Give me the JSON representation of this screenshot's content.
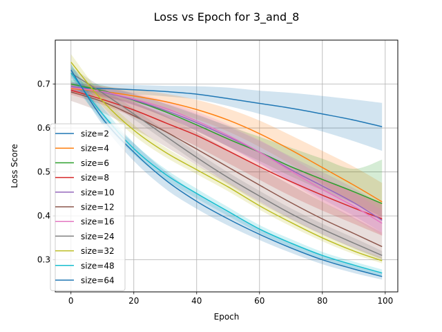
{
  "chart_data": {
    "type": "line",
    "title": "Loss vs Epoch for 3_and_8",
    "xlabel": "Epoch",
    "ylabel": "Loss Score",
    "xlim": [
      -5,
      104
    ],
    "ylim": [
      0.227,
      0.8
    ],
    "xticks": [
      0,
      20,
      40,
      60,
      80,
      100
    ],
    "yticks": [
      0.3,
      0.4,
      0.5,
      0.6,
      0.7
    ],
    "xtick_labels": [
      "0",
      "20",
      "40",
      "60",
      "80",
      "100"
    ],
    "ytick_labels": [
      "0.3",
      "0.4",
      "0.5",
      "0.6",
      "0.7"
    ],
    "grid": true,
    "legend_position": "lower-left",
    "x": [
      0,
      10,
      20,
      30,
      40,
      50,
      60,
      70,
      80,
      90,
      99
    ],
    "series": [
      {
        "name": "size=2",
        "color": "#1f77b4",
        "values": [
          0.692,
          0.69,
          0.687,
          0.683,
          0.677,
          0.667,
          0.656,
          0.645,
          0.632,
          0.618,
          0.603
        ],
        "lower": [
          0.682,
          0.68,
          0.677,
          0.672,
          0.665,
          0.65,
          0.632,
          0.612,
          0.592,
          0.57,
          0.548
        ],
        "upper": [
          0.702,
          0.7,
          0.698,
          0.696,
          0.695,
          0.692,
          0.685,
          0.68,
          0.673,
          0.665,
          0.657
        ]
      },
      {
        "name": "size=4",
        "color": "#ff7f0e",
        "values": [
          0.69,
          0.683,
          0.673,
          0.66,
          0.642,
          0.618,
          0.587,
          0.55,
          0.51,
          0.47,
          0.432
        ],
        "lower": [
          0.68,
          0.67,
          0.658,
          0.642,
          0.62,
          0.592,
          0.557,
          0.517,
          0.472,
          0.43,
          0.392
        ],
        "upper": [
          0.7,
          0.695,
          0.688,
          0.678,
          0.664,
          0.644,
          0.617,
          0.583,
          0.548,
          0.512,
          0.475
        ]
      },
      {
        "name": "size=6",
        "color": "#2ca02c",
        "values": [
          0.7,
          0.685,
          0.663,
          0.637,
          0.607,
          0.575,
          0.545,
          0.512,
          0.483,
          0.455,
          0.428
        ],
        "lower": [
          0.69,
          0.675,
          0.653,
          0.625,
          0.593,
          0.558,
          0.525,
          0.49,
          0.458,
          0.428,
          0.398
        ],
        "upper": [
          0.71,
          0.697,
          0.678,
          0.655,
          0.63,
          0.605,
          0.58,
          0.555,
          0.53,
          0.507,
          0.528
        ]
      },
      {
        "name": "size=8",
        "color": "#d62728",
        "values": [
          0.686,
          0.665,
          0.641,
          0.612,
          0.583,
          0.548,
          0.512,
          0.478,
          0.447,
          0.418,
          0.393
        ],
        "lower": [
          0.676,
          0.653,
          0.625,
          0.592,
          0.558,
          0.52,
          0.482,
          0.445,
          0.412,
          0.382,
          0.355
        ],
        "upper": [
          0.696,
          0.677,
          0.657,
          0.632,
          0.608,
          0.578,
          0.545,
          0.512,
          0.482,
          0.455,
          0.43
        ]
      },
      {
        "name": "size=10",
        "color": "#9467bd",
        "values": [
          0.695,
          0.682,
          0.664,
          0.64,
          0.612,
          0.58,
          0.545,
          0.505,
          0.468,
          0.43,
          0.39
        ],
        "lower": [
          0.685,
          0.672,
          0.652,
          0.625,
          0.593,
          0.558,
          0.52,
          0.478,
          0.438,
          0.4,
          0.362
        ],
        "upper": [
          0.705,
          0.693,
          0.677,
          0.656,
          0.632,
          0.603,
          0.571,
          0.535,
          0.5,
          0.463,
          0.425
        ]
      },
      {
        "name": "size=12",
        "color": "#8c564b",
        "values": [
          0.682,
          0.66,
          0.628,
          0.592,
          0.552,
          0.511,
          0.47,
          0.43,
          0.393,
          0.36,
          0.33
        ],
        "lower": [
          0.662,
          0.635,
          0.598,
          0.558,
          0.515,
          0.472,
          0.43,
          0.392,
          0.357,
          0.327,
          0.302
        ],
        "upper": [
          0.705,
          0.688,
          0.66,
          0.628,
          0.59,
          0.55,
          0.51,
          0.47,
          0.432,
          0.396,
          0.362
        ]
      },
      {
        "name": "size=16",
        "color": "#e377c2",
        "values": [
          0.692,
          0.683,
          0.666,
          0.645,
          0.616,
          0.583,
          0.545,
          0.502,
          0.46,
          0.422,
          0.383
        ],
        "lower": [
          0.682,
          0.671,
          0.652,
          0.627,
          0.595,
          0.558,
          0.518,
          0.475,
          0.432,
          0.393,
          0.356
        ],
        "upper": [
          0.702,
          0.695,
          0.68,
          0.662,
          0.637,
          0.608,
          0.573,
          0.532,
          0.49,
          0.452,
          0.413
        ]
      },
      {
        "name": "size=24",
        "color": "#7f7f7f",
        "values": [
          0.725,
          0.68,
          0.632,
          0.582,
          0.533,
          0.487,
          0.445,
          0.405,
          0.37,
          0.338,
          0.31
        ],
        "lower": [
          0.712,
          0.668,
          0.62,
          0.57,
          0.521,
          0.475,
          0.433,
          0.393,
          0.358,
          0.326,
          0.3
        ],
        "upper": [
          0.738,
          0.692,
          0.644,
          0.594,
          0.545,
          0.499,
          0.457,
          0.417,
          0.382,
          0.35,
          0.32
        ]
      },
      {
        "name": "size=32",
        "color": "#bcbd22",
        "values": [
          0.75,
          0.662,
          0.595,
          0.545,
          0.505,
          0.466,
          0.423,
          0.385,
          0.35,
          0.32,
          0.298
        ],
        "lower": [
          0.732,
          0.65,
          0.583,
          0.534,
          0.495,
          0.456,
          0.414,
          0.376,
          0.342,
          0.313,
          0.292
        ],
        "upper": [
          0.768,
          0.674,
          0.607,
          0.556,
          0.515,
          0.476,
          0.432,
          0.394,
          0.358,
          0.328,
          0.305
        ]
      },
      {
        "name": "size=48",
        "color": "#17becf",
        "values": [
          0.725,
          0.632,
          0.553,
          0.495,
          0.451,
          0.41,
          0.37,
          0.338,
          0.31,
          0.288,
          0.27
        ],
        "lower": [
          0.705,
          0.615,
          0.54,
          0.483,
          0.44,
          0.4,
          0.361,
          0.329,
          0.302,
          0.28,
          0.262
        ],
        "upper": [
          0.745,
          0.648,
          0.566,
          0.507,
          0.462,
          0.42,
          0.379,
          0.347,
          0.318,
          0.296,
          0.278
        ]
      },
      {
        "name": "size=64",
        "color": "#1f77b4",
        "values": [
          0.732,
          0.622,
          0.545,
          0.482,
          0.433,
          0.393,
          0.358,
          0.327,
          0.3,
          0.279,
          0.262
        ],
        "lower": [
          0.718,
          0.608,
          0.525,
          0.462,
          0.416,
          0.378,
          0.345,
          0.316,
          0.29,
          0.27,
          0.255
        ],
        "upper": [
          0.746,
          0.636,
          0.565,
          0.502,
          0.45,
          0.408,
          0.371,
          0.338,
          0.31,
          0.288,
          0.269
        ]
      }
    ]
  }
}
